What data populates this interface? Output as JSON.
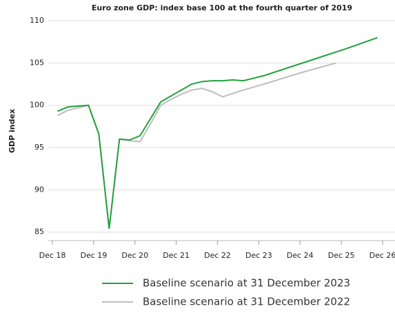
{
  "chart_data": {
    "type": "line",
    "title": "Euro zone GDP: index base 100 at the fourth quarter of 2019",
    "y_label": "GDP index",
    "xlim": [
      -0.4,
      33.2
    ],
    "xticks": [
      {
        "value": 0,
        "label": "Dec 18"
      },
      {
        "value": 4,
        "label": "Dec 19"
      },
      {
        "value": 8,
        "label": "Dec 20"
      },
      {
        "value": 12,
        "label": "Dec 21"
      },
      {
        "value": 16,
        "label": "Dec 22"
      },
      {
        "value": 20,
        "label": "Dec 23"
      },
      {
        "value": 24,
        "label": "Dec 24"
      },
      {
        "value": 28,
        "label": "Dec 25"
      },
      {
        "value": 32,
        "label": "Dec 26"
      }
    ],
    "ylim": [
      84,
      110
    ],
    "yticks": [
      85,
      90,
      95,
      100,
      105,
      110
    ],
    "grid": true,
    "series": [
      {
        "name": "Baseline scenario at 31 December 2023",
        "color": "#22a03c",
        "x": [
          0.5,
          1.5,
          2.5,
          3.5,
          4.5,
          5.5,
          6.5,
          7.5,
          8.5,
          9.5,
          10.5,
          11.5,
          12.5,
          13.5,
          14.5,
          15.5,
          16.5,
          17.5,
          18.5,
          19.5,
          20.5,
          24.5,
          28.5,
          31.5
        ],
        "values": [
          99.3,
          99.8,
          99.9,
          100.0,
          96.6,
          85.4,
          96.0,
          95.9,
          96.4,
          98.4,
          100.4,
          101.1,
          101.8,
          102.5,
          102.8,
          102.9,
          102.9,
          103.0,
          102.9,
          103.2,
          103.5,
          105.1,
          106.7,
          108.0
        ]
      },
      {
        "name": "Baseline scenario at 31 December 2022",
        "color": "#bdbdbd",
        "x": [
          0.5,
          1.5,
          2.5,
          3.5,
          4.5,
          5.5,
          6.5,
          7.5,
          8.5,
          9.5,
          10.5,
          11.5,
          12.5,
          13.5,
          14.5,
          15.5,
          16.5,
          17.5,
          18.5,
          20.5,
          24.5,
          27.5
        ],
        "values": [
          98.8,
          99.4,
          99.7,
          100.0,
          96.6,
          85.4,
          96.0,
          95.8,
          95.7,
          97.8,
          100.0,
          100.7,
          101.3,
          101.8,
          102.0,
          101.6,
          101.0,
          101.4,
          101.8,
          102.5,
          104.0,
          105.0
        ]
      }
    ]
  }
}
